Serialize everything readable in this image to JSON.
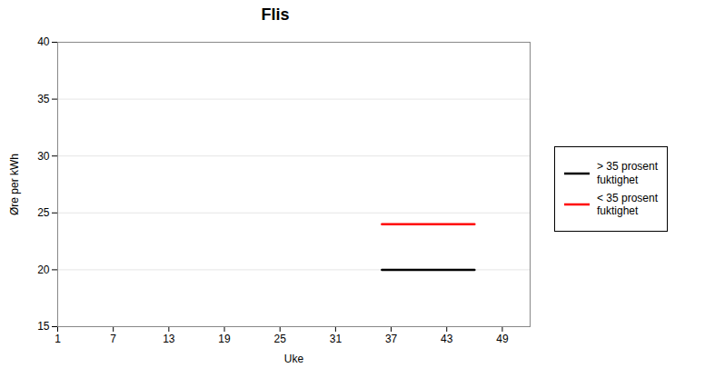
{
  "chart_data": {
    "type": "line",
    "title": "Flis",
    "xlabel": "Uke",
    "ylabel": "Øre per kWh",
    "x": [
      36,
      46
    ],
    "series": [
      {
        "name": "> 35 prosent\nfuktighet",
        "color": "#000000",
        "values": [
          20,
          20
        ]
      },
      {
        "name": "< 35 prosent\nfuktighet",
        "color": "#ff0000",
        "values": [
          24,
          24
        ]
      }
    ],
    "xlim": [
      1,
      52
    ],
    "xticks": [
      1,
      7,
      13,
      19,
      25,
      31,
      37,
      43,
      49
    ],
    "ylim": [
      15,
      40
    ],
    "yticks": [
      15,
      20,
      25,
      30,
      35,
      40
    ],
    "grid": true,
    "legend": "right"
  }
}
